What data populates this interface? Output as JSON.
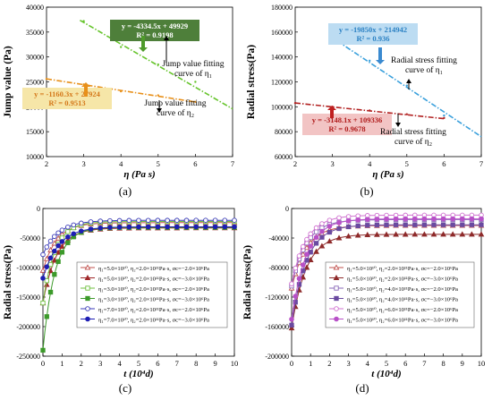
{
  "chart_data": [
    {
      "id": "a",
      "type": "scatter",
      "panel_label": "(a)",
      "xlabel": "η (Pa s)",
      "ylabel": "Jump value (Pa)",
      "xlim": [
        2,
        7
      ],
      "ylim": [
        10000,
        40000
      ],
      "xticks": [
        2,
        3,
        4,
        5,
        6,
        7
      ],
      "yticks": [
        10000,
        15000,
        20000,
        25000,
        30000,
        35000,
        40000
      ],
      "series": [
        {
          "key": "eta1",
          "points": [
            [
              3,
              37200
            ],
            [
              4,
              32000
            ],
            [
              5,
              28500
            ],
            [
              6,
              25000
            ]
          ],
          "color": "#66c42c",
          "fit": {
            "slope": -4334.5,
            "intercept": 49929,
            "x_range": [
              2.9,
              7
            ],
            "color": "#66c42c"
          }
        },
        {
          "key": "eta2",
          "points": [
            [
              2,
              25600
            ],
            [
              3,
              24500
            ],
            [
              4,
              23100
            ],
            [
              5,
              22300
            ],
            [
              6,
              21000
            ]
          ],
          "color": "#e8901a",
          "fit": {
            "slope": -1160.3,
            "intercept": 27924,
            "x_range": [
              2,
              6
            ],
            "color": "#e8901a"
          }
        }
      ],
      "annotations": [
        {
          "lines": [
            "y = -4334.5x + 49929",
            "R² = 0.9198"
          ],
          "bg": "#4e7f3a",
          "fg": "#ffffff"
        },
        {
          "lines": [
            "y = -1160.3x + 27924",
            "R² = 0.9513"
          ],
          "bg": "#f6e6a8",
          "fg": "#d4781a"
        }
      ],
      "labels": [
        {
          "lines": [
            "Jump value fitting",
            "curve of η₁"
          ]
        },
        {
          "lines": [
            "Jump value fitting",
            "curve of η₂"
          ]
        }
      ]
    },
    {
      "id": "b",
      "type": "scatter",
      "panel_label": "(b)",
      "xlabel": "η (Pa s)",
      "ylabel": "Radial stress(Pa)",
      "xlim": [
        2,
        7
      ],
      "ylim": [
        60000,
        180000
      ],
      "xticks": [
        2,
        3,
        4,
        5,
        6,
        7
      ],
      "yticks": [
        60000,
        80000,
        100000,
        120000,
        140000,
        160000,
        180000
      ],
      "series": [
        {
          "key": "eta1",
          "points": [
            [
              3,
              158000
            ],
            [
              4,
              137000
            ],
            [
              5,
              117000
            ],
            [
              6,
              93000
            ]
          ],
          "color": "#3aa0dc",
          "fit": {
            "slope": -19850,
            "intercept": 214942,
            "x_range": [
              2.9,
              7
            ],
            "color": "#3aa0dc"
          }
        },
        {
          "key": "eta2",
          "points": [
            [
              2,
              103000
            ],
            [
              3,
              100000
            ],
            [
              4,
              97000
            ],
            [
              5,
              94000
            ],
            [
              6,
              91000
            ]
          ],
          "color": "#b22222",
          "fit": {
            "slope": -3148.1,
            "intercept": 109336,
            "x_range": [
              2,
              6
            ],
            "color": "#b22222"
          }
        }
      ],
      "annotations": [
        {
          "lines": [
            "y = -19850x + 214942",
            "R² = 0.936"
          ],
          "bg": "#bcdcf2",
          "fg": "#2c82c4"
        },
        {
          "lines": [
            "y = -3148.1x + 109336",
            "R² = 0.9678"
          ],
          "bg": "#f2c4c4",
          "fg": "#b01c1c"
        }
      ],
      "labels": [
        {
          "lines": [
            "Radial stress fitting",
            "curve of η₁"
          ]
        },
        {
          "lines": [
            "Radial stress fitting",
            "curve of η₂"
          ]
        }
      ]
    },
    {
      "id": "c",
      "type": "line",
      "panel_label": "(c)",
      "xlabel": "t (10⁴d)",
      "ylabel": "Radial stress(Pa)",
      "xlim": [
        0,
        10
      ],
      "ylim": [
        -250000,
        0
      ],
      "xticks": [
        0,
        1,
        2,
        3,
        4,
        5,
        6,
        7,
        8,
        9,
        10
      ],
      "yticks": [
        -250000,
        -200000,
        -150000,
        -100000,
        -50000,
        0
      ],
      "series": [
        {
          "name": "η₁=5.0×10¹⁰, η₂=2.0×10¹¹Pa·s, σc=−2.0×10⁶Pa",
          "color": "#c0504d",
          "marker": "triangle",
          "filled": false,
          "start": -105000,
          "end": -24000,
          "rate": 1.4
        },
        {
          "name": "η₁=5.0×10¹⁰, η₂=2.0×10¹¹Pa·s, σc=−3.0×10⁶Pa",
          "color": "#a0282a",
          "marker": "triangle",
          "filled": true,
          "start": -160000,
          "end": -33000,
          "rate": 1.4
        },
        {
          "name": "η₁=3.0×10¹⁰, η₂=2.0×10¹¹Pa·s, σc=−2.0×10⁶Pa",
          "color": "#70c040",
          "marker": "square",
          "filled": false,
          "start": -160000,
          "end": -22000,
          "rate": 1.6
        },
        {
          "name": "η₁=3.0×10¹⁰, η₂=2.0×10¹¹Pa·s, σc=−3.0×10⁶Pa",
          "color": "#3c9a2a",
          "marker": "square",
          "filled": true,
          "start": -240000,
          "end": -32000,
          "rate": 1.6
        },
        {
          "name": "η₁=7.0×10¹⁰, η₂=2.0×10¹¹Pa·s, σc=−2.0×10⁶Pa",
          "color": "#3a3ab8",
          "marker": "circle",
          "filled": false,
          "start": -78000,
          "end": -20000,
          "rate": 1.25
        },
        {
          "name": "η₁=7.0×10¹⁰, η₂=2.0×10¹¹Pa·s, σc=−3.0×10⁶Pa",
          "color": "#1e1eb4",
          "marker": "circle",
          "filled": true,
          "start": -118000,
          "end": -31000,
          "rate": 1.25
        }
      ]
    },
    {
      "id": "d",
      "type": "line",
      "panel_label": "(d)",
      "xlabel": "t (10⁴d)",
      "ylabel": "Radial stress(Pa)",
      "xlim": [
        0,
        10
      ],
      "ylim": [
        -200000,
        0
      ],
      "xticks": [
        0,
        1,
        2,
        3,
        4,
        5,
        6,
        7,
        8,
        9,
        10
      ],
      "yticks": [
        -200000,
        -160000,
        -120000,
        -80000,
        -40000,
        0
      ],
      "series": [
        {
          "name": "η₁=5.0×10¹⁰, η₂=2.0×10¹¹Pa·s, σc=−2.0×10⁶Pa",
          "color": "#c0504d",
          "marker": "triangle",
          "filled": false,
          "start": -108000,
          "end": -23000,
          "rate": 1.3
        },
        {
          "name": "η₁=5.0×10¹⁰, η₂=2.0×10¹¹Pa·s, σc=−3.0×10⁶Pa",
          "color": "#8e2a2a",
          "marker": "triangle",
          "filled": true,
          "start": -162000,
          "end": -35000,
          "rate": 1.3
        },
        {
          "name": "η₁=5.0×10¹⁰, η₂=4.0×10¹¹Pa·s, σc=−2.0×10⁶Pa",
          "color": "#8a6ab8",
          "marker": "square",
          "filled": false,
          "start": -105000,
          "end": -15000,
          "rate": 1.3
        },
        {
          "name": "η₁=5.0×10¹⁰, η₂=4.0×10¹¹Pa·s, σc=−3.0×10⁶Pa",
          "color": "#6a4aa0",
          "marker": "square",
          "filled": true,
          "start": -158000,
          "end": -22000,
          "rate": 1.3
        },
        {
          "name": "η₁=5.0×10¹⁰, η₂=6.0×10¹¹Pa·s, σc=−2.0×10⁶Pa",
          "color": "#d070d0",
          "marker": "circle",
          "filled": false,
          "start": -102000,
          "end": -9000,
          "rate": 1.3
        },
        {
          "name": "η₁=5.0×10¹⁰, η₂=6.0×10¹¹Pa·s, σc=−3.0×10⁶Pa",
          "color": "#b850c8",
          "marker": "circle",
          "filled": true,
          "start": -150000,
          "end": -14000,
          "rate": 1.3
        }
      ]
    }
  ]
}
